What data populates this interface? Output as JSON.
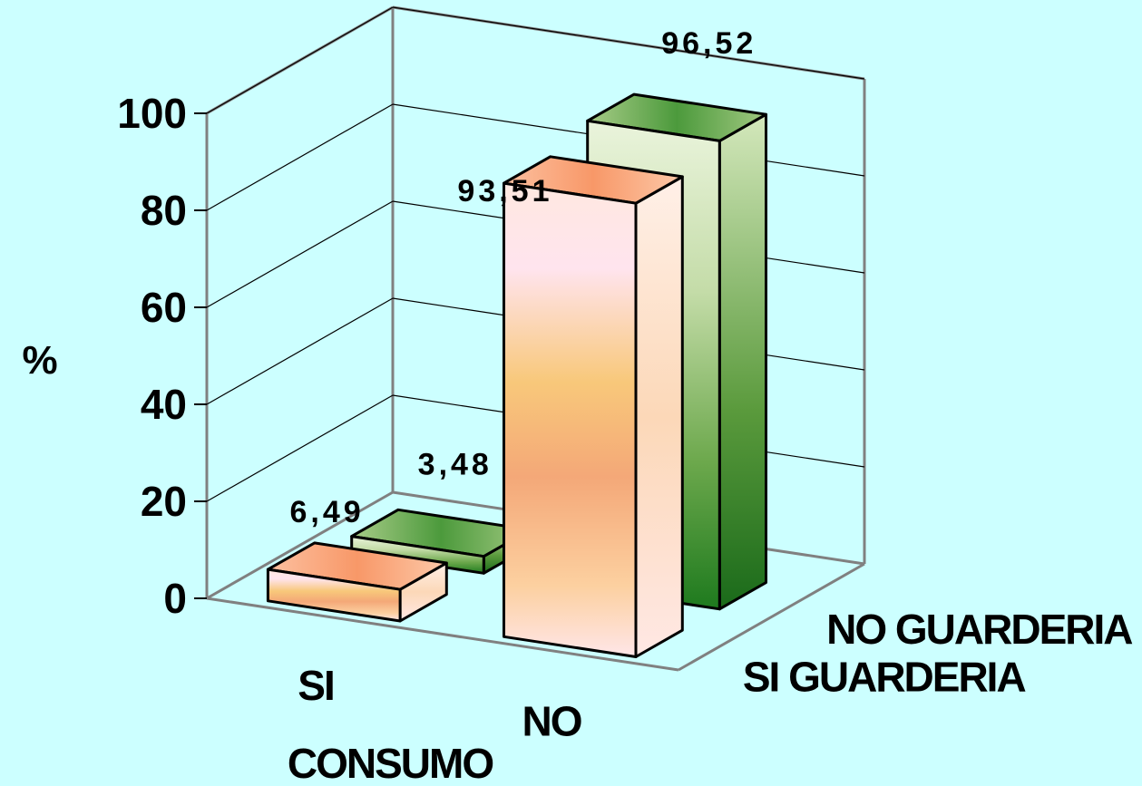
{
  "chart_data": {
    "type": "bar",
    "variant": "3d-clustered",
    "title": "",
    "xlabel": "CONSUMO",
    "ylabel": "%",
    "ylim": [
      0,
      100
    ],
    "yticks": [
      0,
      20,
      40,
      60,
      80,
      100
    ],
    "ytick_labels": [
      "0",
      "20",
      "40",
      "60",
      "80",
      "100"
    ],
    "categories": [
      "SI",
      "NO"
    ],
    "series": [
      {
        "name": "SI GUARDERIA",
        "values": [
          6.49,
          93.51
        ],
        "labels": [
          "6,49",
          "93,51"
        ],
        "color_light": "#ffe8e0",
        "color_mid": "#f8a878",
        "color_top": "#fcc8a0"
      },
      {
        "name": "NO GUARDERIA",
        "values": [
          3.48,
          96.52
        ],
        "labels": [
          "3,48",
          "96,52"
        ],
        "color_light": "#dcecc4",
        "color_mid": "#8cbc6c",
        "color_top": "#7aac4c"
      }
    ],
    "grid": true,
    "legend": "none"
  }
}
